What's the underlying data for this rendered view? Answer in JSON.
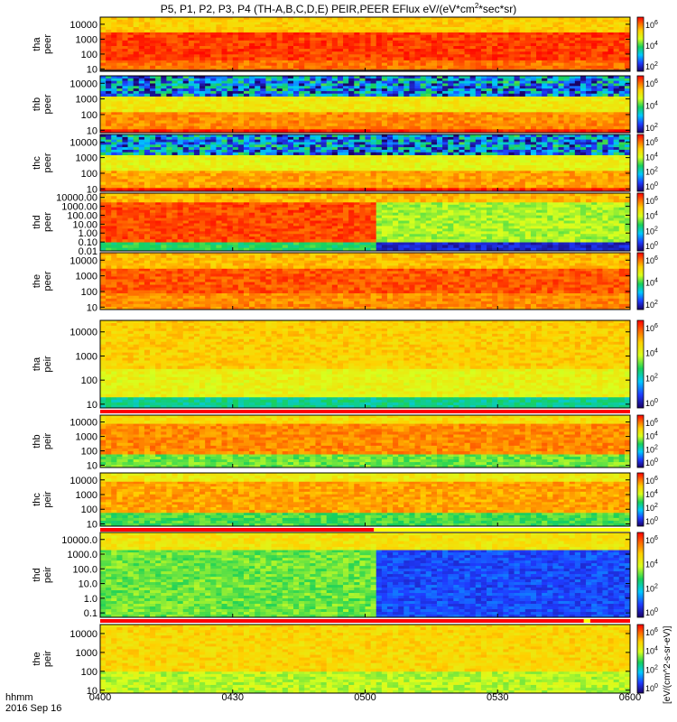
{
  "chart_data": {
    "type": "heatmap",
    "title": "P5, P1, P2, P3, P4 (TH-A,B,C,D,E) PEIR,PEER EFlux eV/(eV*cm^2*sec*sr)",
    "title_parts": {
      "main": "P5, P1, P2, P3, P4 (TH-A,B,C,D,E) PEIR,PEER EFlux eV/(eV*cm",
      "sup": "2",
      "tail": "*sec*sr)"
    },
    "x_axis": {
      "tick_labels": [
        "0400",
        "0430",
        "0500",
        "0530",
        "0600"
      ],
      "tick_values_min": [
        0,
        30,
        60,
        90,
        120
      ],
      "xlim_min": [
        0,
        120
      ],
      "unit_label": "hhmm",
      "date_label": "2016 Sep 16"
    },
    "colorbar": {
      "label": "[eV/(cm^2-s-sr-eV)]",
      "log": true,
      "range": [
        1,
        1000000
      ],
      "tick_labels": [
        "10^6",
        "10^4",
        "10^2",
        "10^0"
      ]
    },
    "panels": [
      {
        "name": "tha-peer",
        "ylabel": [
          "tha",
          "peer"
        ],
        "yscale": "log",
        "ylim": [
          7,
          30000
        ],
        "tick_labels": [
          "10000",
          "1000",
          "100",
          "10"
        ],
        "tick_values": [
          10000,
          1000,
          100,
          10
        ],
        "colorbar_ticks": [
          "10^6",
          "10^4",
          "10^2"
        ],
        "bands": [
          {
            "y0": 7,
            "y1": 40,
            "level": 5.4
          },
          {
            "y0": 40,
            "y1": 3000,
            "level": 5.8
          },
          {
            "y0": 3000,
            "y1": 30000,
            "level": 4.6
          }
        ],
        "edge": {
          "y": 8,
          "color": "#222222"
        }
      },
      {
        "name": "thb-peer",
        "ylabel": [
          "thb",
          "peer"
        ],
        "yscale": "log",
        "ylim": [
          7,
          30000
        ],
        "tick_labels": [
          "10000",
          "1000",
          "100",
          "10"
        ],
        "tick_values": [
          10000,
          1000,
          100,
          10
        ],
        "colorbar_ticks": [
          "10^6",
          "10^4",
          "10^2"
        ],
        "bands": [
          {
            "y0": 7,
            "y1": 12,
            "level": 6.0
          },
          {
            "y0": 12,
            "y1": 150,
            "level": 5.2
          },
          {
            "y0": 150,
            "y1": 1500,
            "level": 4.2
          },
          {
            "y0": 1500,
            "y1": 30000,
            "level": 1.5
          }
        ],
        "noise_above": 1500
      },
      {
        "name": "thc-peer",
        "ylabel": [
          "thc",
          "peer"
        ],
        "yscale": "log",
        "ylim": [
          7,
          30000
        ],
        "tick_labels": [
          "10000",
          "1000",
          "100",
          "10"
        ],
        "tick_values": [
          10000,
          1000,
          100,
          10
        ],
        "colorbar_ticks": [
          "10^6",
          "10^4",
          "10^2",
          "10^0"
        ],
        "bands": [
          {
            "y0": 7,
            "y1": 12,
            "level": 6.0
          },
          {
            "y0": 12,
            "y1": 150,
            "level": 5.0
          },
          {
            "y0": 150,
            "y1": 1500,
            "level": 4.0
          },
          {
            "y0": 1500,
            "y1": 30000,
            "level": 1.5
          }
        ],
        "noise_above": 1500
      },
      {
        "name": "thd-peer",
        "ylabel": [
          "thd",
          "peer"
        ],
        "yscale": "log",
        "ylim": [
          0.01,
          30000
        ],
        "tick_labels": [
          "10000.00",
          "1000.00",
          "100.00",
          "10.00",
          "1.00",
          "0.10",
          "0.01"
        ],
        "tick_values": [
          10000,
          1000,
          100,
          10,
          1,
          0.1,
          0.01
        ],
        "colorbar_ticks": [
          "10^6",
          "10^4",
          "10^2",
          "10^0"
        ],
        "bands": [
          {
            "y0": 0.01,
            "y1": 0.1,
            "level": 2.8
          },
          {
            "y0": 0.1,
            "y1": 3000,
            "level": 5.7
          },
          {
            "y0": 3000,
            "y1": 30000,
            "level": 4.8
          }
        ],
        "gap_after_min": 63
      },
      {
        "name": "the-peer",
        "ylabel": [
          "the",
          "peer"
        ],
        "yscale": "log",
        "ylim": [
          7,
          30000
        ],
        "tick_labels": [
          "10000",
          "1000",
          "100",
          "10"
        ],
        "tick_values": [
          10000,
          1000,
          100,
          10
        ],
        "colorbar_ticks": [
          "10^6",
          "10^4",
          "10^2"
        ],
        "bands": [
          {
            "y0": 7,
            "y1": 80,
            "level": 5.2
          },
          {
            "y0": 80,
            "y1": 3000,
            "level": 5.6
          },
          {
            "y0": 3000,
            "y1": 30000,
            "level": 4.8
          }
        ]
      },
      {
        "name": "tha-peir",
        "ylabel": [
          "tha",
          "peir"
        ],
        "yscale": "log",
        "ylim": [
          7,
          30000
        ],
        "tick_labels": [
          "10000",
          "1000",
          "100",
          "10"
        ],
        "tick_values": [
          10000,
          1000,
          100,
          10
        ],
        "colorbar_ticks": [
          "10^6",
          "10^4",
          "10^2",
          "10^0"
        ],
        "bands": [
          {
            "y0": 7,
            "y1": 20,
            "level": 2.5
          },
          {
            "y0": 20,
            "y1": 300,
            "level": 4.0
          },
          {
            "y0": 300,
            "y1": 30000,
            "level": 4.6
          }
        ],
        "flag_bar": "red"
      },
      {
        "name": "thb-peir",
        "ylabel": [
          "thb",
          "peir"
        ],
        "yscale": "log",
        "ylim": [
          7,
          30000
        ],
        "tick_labels": [
          "10000",
          "1000",
          "100",
          "10"
        ],
        "tick_values": [
          10000,
          1000,
          100,
          10
        ],
        "colorbar_ticks": [
          "10^6",
          "10^4",
          "10^2",
          "10^0"
        ],
        "bands": [
          {
            "y0": 7,
            "y1": 60,
            "level": 3.2
          },
          {
            "y0": 60,
            "y1": 8000,
            "level": 5.2
          },
          {
            "y0": 8000,
            "y1": 30000,
            "level": 4.4
          }
        ]
      },
      {
        "name": "thc-peir",
        "ylabel": [
          "thc",
          "peir"
        ],
        "yscale": "log",
        "ylim": [
          7,
          30000
        ],
        "tick_labels": [
          "10000",
          "1000",
          "100",
          "10"
        ],
        "tick_values": [
          10000,
          1000,
          100,
          10
        ],
        "colorbar_ticks": [
          "10^6",
          "10^4",
          "10^2",
          "10^0"
        ],
        "bands": [
          {
            "y0": 7,
            "y1": 60,
            "level": 3.0
          },
          {
            "y0": 60,
            "y1": 8000,
            "level": 5.0
          },
          {
            "y0": 8000,
            "y1": 30000,
            "level": 4.2
          }
        ],
        "flag_bar": "red-yellow",
        "flag_split_min": 62
      },
      {
        "name": "thd-peir",
        "ylabel": [
          "thd",
          "peir"
        ],
        "yscale": "log",
        "ylim": [
          0.05,
          30000
        ],
        "tick_labels": [
          "10000.0",
          "1000.0",
          "100.0",
          "10.0",
          "1.0",
          "0.1"
        ],
        "tick_values": [
          10000,
          1000,
          100,
          10,
          1,
          0.1
        ],
        "colorbar_ticks": [
          "10^6",
          "10^4",
          "10^2",
          "10^0"
        ],
        "bands": [
          {
            "y0": 0.05,
            "y1": 2000,
            "level": 3.2
          },
          {
            "y0": 2000,
            "y1": 30000,
            "level": 4.3
          }
        ],
        "gap_after_min": 62,
        "flag_bar": "red-yellow-red",
        "flag_yellow_min": [
          109.5,
          111
        ]
      },
      {
        "name": "the-peir",
        "ylabel": [
          "the",
          "peir"
        ],
        "yscale": "log",
        "ylim": [
          7,
          30000
        ],
        "tick_labels": [
          "10000",
          "1000",
          "100",
          "10"
        ],
        "tick_values": [
          10000,
          1000,
          100,
          10
        ],
        "colorbar_ticks": [
          "10^6",
          "10^4",
          "10^2",
          "10^0"
        ],
        "bands": [
          {
            "y0": 7,
            "y1": 100,
            "level": 3.6
          },
          {
            "y0": 100,
            "y1": 30000,
            "level": 4.5
          }
        ]
      }
    ]
  }
}
